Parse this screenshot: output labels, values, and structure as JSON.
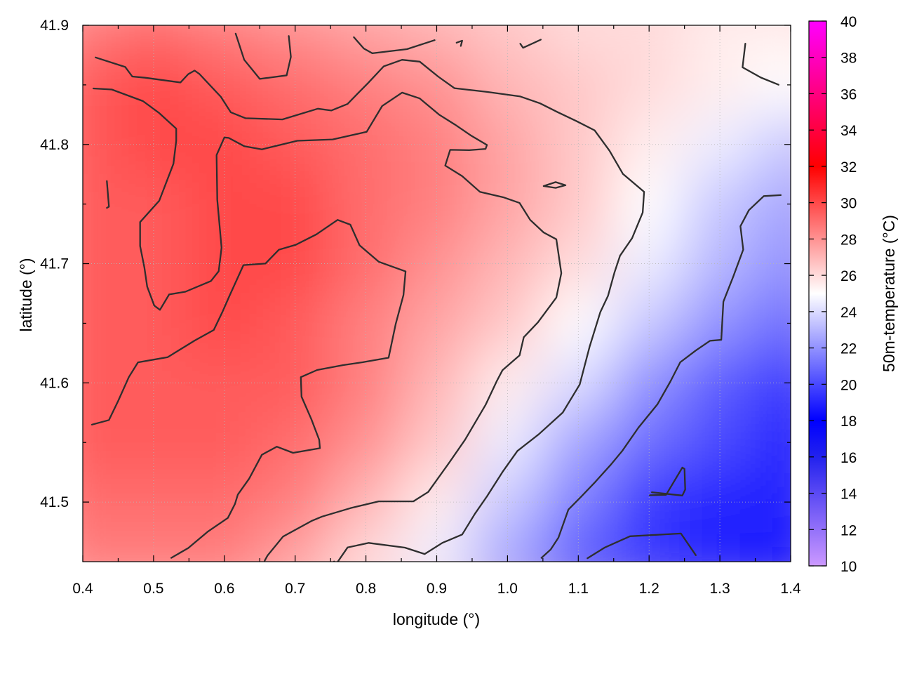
{
  "chart_data": {
    "type": "heatmap",
    "xlabel": "longitude (°)",
    "ylabel": "latitude (°)",
    "colorbar_label": "50m-temperature (°C)",
    "xlim": [
      0.4,
      1.4
    ],
    "ylim": [
      41.45,
      41.9
    ],
    "x_ticks": [
      0.4,
      0.5,
      0.6,
      0.7,
      0.8,
      0.9,
      1.0,
      1.1,
      1.2,
      1.3,
      1.4
    ],
    "x_tick_labels": [
      "0.4",
      "0.5",
      "0.6",
      "0.7",
      "0.8",
      "0.9",
      "1.0",
      "1.1",
      "1.2",
      "1.3",
      "1.4"
    ],
    "y_ticks": [
      41.5,
      41.6,
      41.7,
      41.8,
      41.9
    ],
    "y_tick_labels": [
      "41.5",
      "41.6",
      "41.7",
      "41.8",
      "41.9"
    ],
    "colorbar_range": [
      10,
      40
    ],
    "colorbar_ticks": [
      10,
      12,
      14,
      16,
      18,
      20,
      22,
      24,
      26,
      28,
      30,
      32,
      34,
      36,
      38,
      40
    ],
    "colorbar_tick_labels": [
      "10",
      "12",
      "14",
      "16",
      "18",
      "20",
      "22",
      "24",
      "26",
      "28",
      "30",
      "32",
      "34",
      "36",
      "38",
      "40"
    ],
    "colorscale": [
      {
        "value": 10,
        "color": "#cc99ff"
      },
      {
        "value": 16,
        "color": "#2222ee"
      },
      {
        "value": 18,
        "color": "#0000ff"
      },
      {
        "value": 25,
        "color": "#ffffff"
      },
      {
        "value": 32,
        "color": "#ff0000"
      },
      {
        "value": 40,
        "color": "#ff00ff"
      }
    ],
    "grid": true,
    "temperature_field": {
      "x": [
        0.4,
        0.5,
        0.6,
        0.7,
        0.8,
        0.9,
        1.0,
        1.1,
        1.2,
        1.3,
        1.4
      ],
      "y": [
        41.9,
        41.85,
        41.8,
        41.75,
        41.7,
        41.65,
        41.6,
        41.55,
        41.5,
        41.45
      ],
      "values": [
        [
          28.5,
          29.0,
          28.5,
          28.0,
          27.5,
          27.0,
          26.5,
          26.0,
          26.0,
          25.5,
          25.5
        ],
        [
          29.5,
          30.0,
          29.5,
          29.0,
          28.5,
          28.0,
          27.0,
          26.5,
          26.0,
          25.5,
          25.0
        ],
        [
          29.5,
          30.0,
          30.0,
          29.5,
          29.0,
          28.5,
          27.5,
          26.5,
          25.5,
          24.5,
          23.5
        ],
        [
          29.5,
          29.5,
          30.0,
          30.0,
          29.0,
          28.5,
          27.5,
          26.5,
          25.0,
          23.5,
          22.5
        ],
        [
          29.5,
          29.5,
          30.0,
          30.0,
          29.0,
          28.0,
          27.0,
          26.0,
          24.5,
          23.0,
          22.0
        ],
        [
          29.5,
          29.5,
          30.0,
          29.5,
          28.5,
          27.5,
          26.5,
          25.0,
          23.5,
          22.0,
          21.0
        ],
        [
          29.5,
          29.5,
          29.5,
          29.5,
          28.5,
          27.0,
          25.5,
          24.0,
          22.0,
          20.5,
          19.5
        ],
        [
          29.5,
          29.5,
          29.5,
          29.0,
          28.0,
          26.5,
          24.5,
          22.5,
          21.0,
          20.0,
          19.0
        ],
        [
          29.0,
          29.0,
          29.0,
          28.5,
          27.0,
          25.5,
          23.5,
          21.5,
          19.5,
          19.0,
          19.0
        ],
        [
          28.5,
          28.5,
          28.5,
          27.5,
          26.0,
          24.5,
          22.5,
          20.5,
          19.5,
          19.0,
          18.5
        ]
      ]
    },
    "contours": [
      {
        "points": [
          [
            0.418,
            41.873
          ],
          [
            0.46,
            41.865
          ],
          [
            0.47,
            41.857
          ],
          [
            0.488,
            41.856
          ],
          [
            0.538,
            41.852
          ],
          [
            0.549,
            41.859
          ],
          [
            0.558,
            41.862
          ],
          [
            0.565,
            41.859
          ],
          [
            0.595,
            41.84
          ],
          [
            0.609,
            41.827
          ],
          [
            0.63,
            41.822
          ],
          [
            0.682,
            41.821
          ],
          [
            0.732,
            41.83
          ],
          [
            0.751,
            41.8285
          ],
          [
            0.774,
            41.834
          ],
          [
            0.788,
            41.8425
          ],
          [
            0.803,
            41.8515
          ],
          [
            0.825,
            41.8655
          ],
          [
            0.851,
            41.871
          ],
          [
            0.876,
            41.8695
          ],
          [
            0.902,
            41.857
          ],
          [
            0.925,
            41.8472
          ],
          [
            0.971,
            41.8441
          ],
          [
            1.018,
            41.8403
          ],
          [
            1.046,
            41.8345
          ],
          [
            1.071,
            41.8271
          ],
          [
            1.097,
            41.8197
          ],
          [
            1.123,
            41.8119
          ],
          [
            1.144,
            41.7948
          ],
          [
            1.163,
            41.7753
          ],
          [
            1.193,
            41.7603
          ],
          [
            1.191,
            41.7429
          ],
          [
            1.176,
            41.7214
          ],
          [
            1.159,
            41.7067
          ],
          [
            1.151,
            41.6925
          ],
          [
            1.142,
            41.6731
          ],
          [
            1.131,
            41.6592
          ],
          [
            1.116,
            41.6303
          ],
          [
            1.102,
            41.5986
          ],
          [
            1.078,
            41.5751
          ],
          [
            1.044,
            41.5568
          ],
          [
            1.014,
            41.5429
          ],
          [
            0.993,
            41.5253
          ],
          [
            0.971,
            41.5048
          ],
          [
            0.954,
            41.4902
          ],
          [
            0.936,
            41.4728
          ],
          [
            0.908,
            41.4658
          ],
          [
            0.883,
            41.4564
          ],
          [
            0.855,
            41.4618
          ],
          [
            0.804,
            41.4657
          ],
          [
            0.774,
            41.4619
          ],
          [
            0.757,
            41.4472
          ],
          [
            0.755,
            41.4502
          ]
        ]
      },
      {
        "points": [
          [
            0.415,
            41.847
          ],
          [
            0.441,
            41.8461
          ],
          [
            0.485,
            41.8364
          ],
          [
            0.508,
            41.8263
          ],
          [
            0.532,
            41.8133
          ],
          [
            0.532,
            41.8031
          ],
          [
            0.528,
            41.7838
          ],
          [
            0.508,
            41.7528
          ],
          [
            0.481,
            41.7349
          ],
          [
            0.481,
            41.7148
          ],
          [
            0.487,
            41.6968
          ],
          [
            0.491,
            41.6807
          ],
          [
            0.501,
            41.6648
          ],
          [
            0.509,
            41.6613
          ],
          [
            0.522,
            41.6742
          ],
          [
            0.545,
            41.6765
          ],
          [
            0.581,
            41.6854
          ],
          [
            0.592,
            41.6936
          ],
          [
            0.596,
            41.7134
          ],
          [
            0.59,
            41.7535
          ],
          [
            0.589,
            41.7911
          ],
          [
            0.6,
            41.8059
          ],
          [
            0.606,
            41.8055
          ],
          [
            0.628,
            41.7986
          ],
          [
            0.653,
            41.7959
          ],
          [
            0.703,
            41.8031
          ],
          [
            0.753,
            41.8042
          ],
          [
            0.801,
            41.8106
          ],
          [
            0.823,
            41.8323
          ],
          [
            0.851,
            41.8435
          ],
          [
            0.876,
            41.8386
          ],
          [
            0.904,
            41.8248
          ],
          [
            0.926,
            41.8166
          ],
          [
            0.949,
            41.8073
          ],
          [
            0.971,
            41.7996
          ],
          [
            0.969,
            41.7963
          ],
          [
            0.946,
            41.7952
          ],
          [
            0.919,
            41.7955
          ],
          [
            0.912,
            41.7823
          ],
          [
            0.936,
            41.7734
          ],
          [
            0.961,
            41.7603
          ],
          [
            0.995,
            41.7555
          ],
          [
            1.017,
            41.7509
          ],
          [
            1.032,
            41.7367
          ],
          [
            1.051,
            41.7262
          ],
          [
            1.069,
            41.7205
          ],
          [
            1.076,
            41.6921
          ],
          [
            1.069,
            41.6716
          ],
          [
            1.043,
            41.6508
          ],
          [
            1.023,
            41.6383
          ],
          [
            1.017,
            41.6231
          ],
          [
            0.993,
            41.6107
          ],
          [
            0.985,
            41.6017
          ],
          [
            0.969,
            41.5815
          ],
          [
            0.94,
            41.5523
          ],
          [
            0.918,
            41.5334
          ],
          [
            0.888,
            41.5085
          ],
          [
            0.867,
            41.5006
          ],
          [
            0.818,
            41.5006
          ],
          [
            0.778,
            41.4949
          ],
          [
            0.738,
            41.4878
          ],
          [
            0.723,
            41.4841
          ],
          [
            0.683,
            41.4711
          ],
          [
            0.661,
            41.4551
          ],
          [
            0.657,
            41.4508
          ]
        ]
      },
      {
        "points": [
          [
            0.413,
            41.565
          ],
          [
            0.437,
            41.5688
          ],
          [
            0.45,
            41.5848
          ],
          [
            0.465,
            41.6048
          ],
          [
            0.478,
            41.6172
          ],
          [
            0.52,
            41.6216
          ],
          [
            0.558,
            41.6355
          ],
          [
            0.585,
            41.6444
          ],
          [
            0.597,
            41.6592
          ],
          [
            0.607,
            41.6727
          ],
          [
            0.627,
            41.6988
          ],
          [
            0.658,
            41.7001
          ],
          [
            0.677,
            41.7117
          ],
          [
            0.701,
            41.7159
          ],
          [
            0.73,
            41.7246
          ],
          [
            0.76,
            41.7367
          ],
          [
            0.778,
            41.7327
          ],
          [
            0.791,
            41.7154
          ],
          [
            0.818,
            41.7016
          ],
          [
            0.856,
            41.6935
          ],
          [
            0.853,
            41.6737
          ],
          [
            0.842,
            41.6493
          ],
          [
            0.832,
            41.6211
          ],
          [
            0.795,
            41.6173
          ],
          [
            0.768,
            41.6149
          ],
          [
            0.731,
            41.6108
          ],
          [
            0.708,
            41.6048
          ],
          [
            0.709,
            41.5884
          ],
          [
            0.723,
            41.5694
          ],
          [
            0.734,
            41.5522
          ],
          [
            0.735,
            41.5452
          ],
          [
            0.697,
            41.5413
          ],
          [
            0.674,
            41.5465
          ],
          [
            0.653,
            41.5397
          ],
          [
            0.635,
            41.5196
          ],
          [
            0.619,
            41.5063
          ],
          [
            0.615,
            41.4984
          ],
          [
            0.605,
            41.4867
          ],
          [
            0.577,
            41.4754
          ],
          [
            0.549,
            41.4614
          ],
          [
            0.525,
            41.4532
          ]
        ]
      },
      {
        "points": [
          [
            0.434,
            41.7693
          ],
          [
            0.437,
            41.7478
          ],
          [
            0.434,
            41.7468
          ]
        ]
      },
      {
        "points": [
          [
            0.616,
            41.893
          ],
          [
            0.628,
            41.871
          ],
          [
            0.65,
            41.855
          ],
          [
            0.688,
            41.858
          ],
          [
            0.694,
            41.8735
          ],
          [
            0.691,
            41.891
          ]
        ]
      },
      {
        "points": [
          [
            0.783,
            41.89
          ],
          [
            0.797,
            41.8805
          ],
          [
            0.809,
            41.8765
          ],
          [
            0.858,
            41.88
          ],
          [
            0.897,
            41.8875
          ]
        ]
      },
      {
        "points": [
          [
            0.928,
            41.8854
          ],
          [
            0.936,
            41.8871
          ],
          [
            0.934,
            41.8826
          ]
        ]
      },
      {
        "points": [
          [
            1.018,
            41.8845
          ],
          [
            1.022,
            41.8811
          ],
          [
            1.047,
            41.8879
          ]
        ]
      },
      {
        "points": [
          [
            1.051,
            41.7651
          ],
          [
            1.068,
            41.7684
          ],
          [
            1.082,
            41.7658
          ],
          [
            1.068,
            41.7636
          ],
          [
            1.051,
            41.7651
          ]
        ]
      },
      {
        "points": [
          [
            1.336,
            41.8846
          ],
          [
            1.332,
            41.8647
          ],
          [
            1.358,
            41.8561
          ],
          [
            1.383,
            41.8501
          ]
        ]
      },
      {
        "points": [
          [
            1.386,
            41.7575
          ],
          [
            1.362,
            41.7567
          ],
          [
            1.341,
            41.7449
          ],
          [
            1.329,
            41.7314
          ],
          [
            1.333,
            41.7118
          ],
          [
            1.319,
            41.6894
          ],
          [
            1.305,
            41.6681
          ],
          [
            1.302,
            41.6361
          ],
          [
            1.286,
            41.6353
          ],
          [
            1.266,
            41.6272
          ],
          [
            1.244,
            41.6173
          ],
          [
            1.23,
            41.6011
          ],
          [
            1.212,
            41.5822
          ],
          [
            1.185,
            41.5625
          ],
          [
            1.162,
            41.5429
          ],
          [
            1.146,
            41.5314
          ],
          [
            1.124,
            41.5169
          ],
          [
            1.104,
            41.5045
          ],
          [
            1.086,
            41.4937
          ],
          [
            1.072,
            41.4702
          ],
          [
            1.061,
            41.4602
          ],
          [
            1.048,
            41.4532
          ]
        ]
      },
      {
        "points": [
          [
            1.113,
            41.4529
          ],
          [
            1.137,
            41.4617
          ],
          [
            1.173,
            41.4713
          ],
          [
            1.245,
            41.4736
          ],
          [
            1.266,
            41.4554
          ]
        ]
      },
      {
        "points": [
          [
            1.204,
            41.5082
          ],
          [
            1.247,
            41.5055
          ],
          [
            1.251,
            41.5105
          ],
          [
            1.25,
            41.5278
          ],
          [
            1.247,
            41.5289
          ],
          [
            1.224,
            41.5061
          ],
          [
            1.201,
            41.5057
          ]
        ]
      }
    ]
  }
}
